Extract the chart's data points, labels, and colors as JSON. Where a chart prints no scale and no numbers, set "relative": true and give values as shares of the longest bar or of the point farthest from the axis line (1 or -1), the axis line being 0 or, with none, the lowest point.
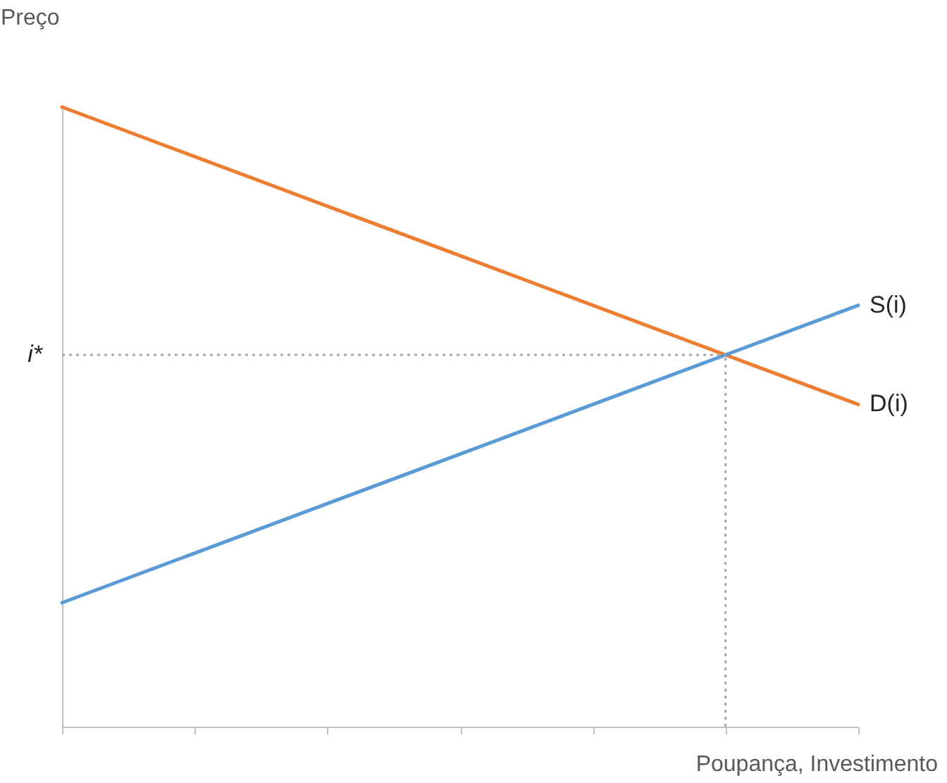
{
  "chart_data": {
    "type": "line",
    "relative": true,
    "xlabel": "Poupança, Investimento",
    "ylabel": "Preço",
    "categories": [
      null,
      null,
      null,
      null,
      null,
      null,
      null
    ],
    "tick_labels": false,
    "marker": "none",
    "line_style": "solid",
    "grid": false,
    "legend": false,
    "series": [
      {
        "name": "D(i)",
        "color": "#ed7d31",
        "values": [
          1,
          0.92,
          0.84,
          0.76,
          0.68,
          0.6,
          0.52
        ]
      },
      {
        "name": "S(i)",
        "color": "#5b9bd5",
        "values": [
          0.2,
          0.28,
          0.36,
          0.44,
          0.52,
          0.6,
          0.68
        ]
      }
    ],
    "ref_lines": [
      {
        "axis": "y",
        "value": 0.6,
        "label": "i*",
        "color": "#a6a6a6",
        "line_style": "dotted"
      }
    ]
  }
}
